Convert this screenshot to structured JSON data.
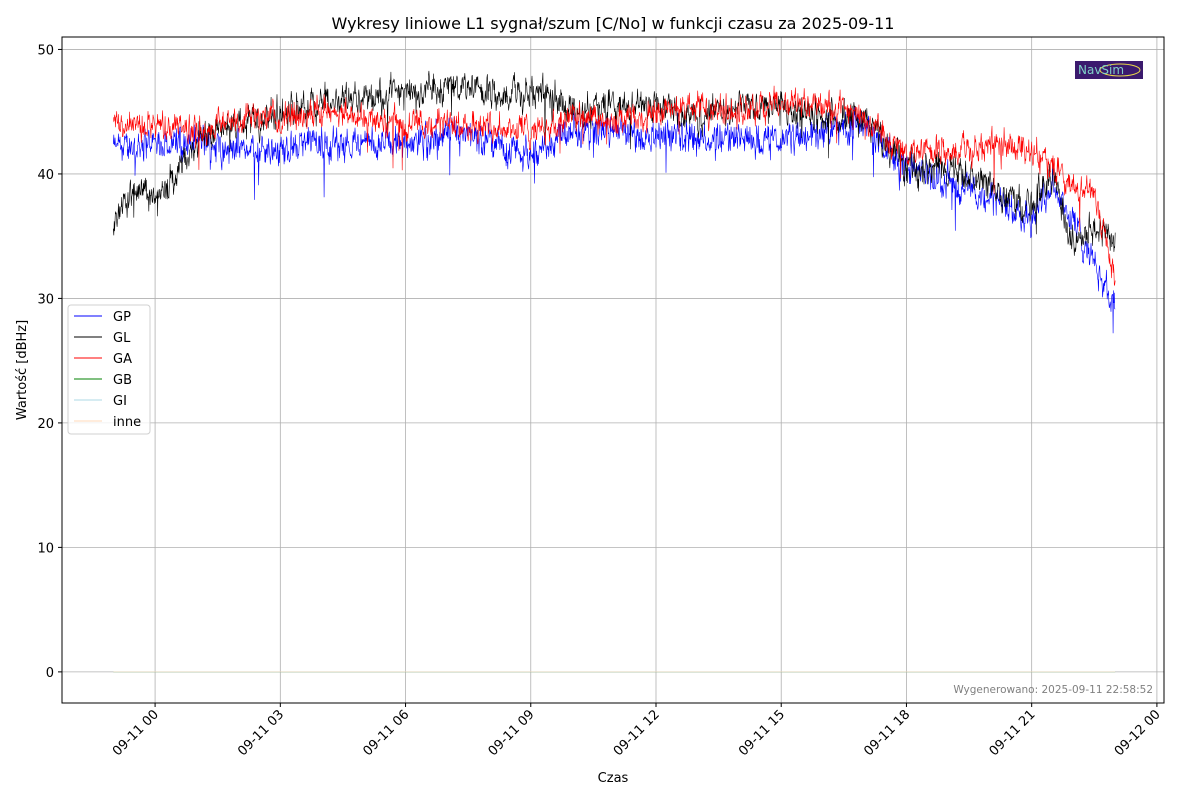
{
  "chart_data": {
    "type": "line",
    "title": "Wykresy liniowe L1 sygnał/szum [C/No] w funkcji czasu za 2025-09-11",
    "xlabel": "Czas",
    "ylabel": "Wartość [dBHz]",
    "x_units": "hours since 2025-09-11 00:00",
    "xlim": [
      -2.23,
      24.17
    ],
    "ylim": [
      -2.5,
      51
    ],
    "grid": true,
    "legend_position": "center-left",
    "x_ticks": [
      {
        "value": 0,
        "label": "09-11 00"
      },
      {
        "value": 3,
        "label": "09-11 03"
      },
      {
        "value": 6,
        "label": "09-11 06"
      },
      {
        "value": 9,
        "label": "09-11 09"
      },
      {
        "value": 12,
        "label": "09-11 12"
      },
      {
        "value": 15,
        "label": "09-11 15"
      },
      {
        "value": 18,
        "label": "09-11 18"
      },
      {
        "value": 21,
        "label": "09-11 21"
      },
      {
        "value": 24,
        "label": "09-12 00"
      }
    ],
    "y_ticks": [
      {
        "value": 0,
        "label": "0"
      },
      {
        "value": 10,
        "label": "10"
      },
      {
        "value": 20,
        "label": "20"
      },
      {
        "value": 30,
        "label": "30"
      },
      {
        "value": 40,
        "label": "40"
      },
      {
        "value": 50,
        "label": "50"
      }
    ],
    "series": [
      {
        "name": "GP",
        "color": "#0000ff",
        "noise": 1.0,
        "x": [
          -1,
          0,
          1,
          2,
          3,
          4,
          5,
          6,
          7,
          8,
          9,
          10,
          11,
          12,
          13,
          14,
          15,
          16,
          17,
          18,
          19,
          20,
          21,
          21.5,
          22,
          22.5,
          23
        ],
        "y": [
          42,
          42.5,
          42.5,
          42,
          42,
          42.5,
          42.5,
          42.5,
          43,
          42.5,
          41.5,
          43.5,
          43.5,
          43,
          43,
          43,
          42.5,
          43.5,
          44,
          40.5,
          39.5,
          38,
          36.5,
          39.5,
          36,
          33,
          29.5
        ]
      },
      {
        "name": "GL",
        "color": "#000000",
        "noise": 1.0,
        "x": [
          -1,
          -0.5,
          0,
          0.5,
          1,
          2,
          3,
          4,
          5,
          6,
          7,
          8,
          9,
          10,
          11,
          12,
          13,
          14,
          15,
          16,
          17,
          18,
          19,
          20,
          21,
          21.5,
          22,
          22.5,
          23
        ],
        "y": [
          36,
          38.5,
          38,
          39.5,
          43,
          44,
          45,
          45.5,
          46,
          46.5,
          47,
          46.5,
          46.5,
          45,
          45.5,
          45.5,
          44.5,
          45.5,
          45.5,
          44.5,
          44.5,
          40.5,
          40.5,
          39,
          37.5,
          40,
          34.5,
          36,
          34.5
        ]
      },
      {
        "name": "GA",
        "color": "#ff0000",
        "noise": 0.9,
        "x": [
          -1,
          0,
          1,
          2,
          3,
          4,
          5,
          6,
          7,
          8,
          9,
          10,
          11,
          12,
          13,
          14,
          15,
          16,
          17,
          18,
          19,
          20,
          21,
          22,
          22.5,
          23
        ],
        "y": [
          44,
          44,
          43.5,
          44.5,
          44.5,
          45,
          44.5,
          44,
          44,
          44,
          43.5,
          44.5,
          44,
          45,
          45.5,
          45,
          45.5,
          45.5,
          44.5,
          41.5,
          42,
          42,
          42,
          39,
          38.5,
          31.5
        ]
      },
      {
        "name": "GB",
        "color": "#008000",
        "noise": 0,
        "x": [
          -1,
          23
        ],
        "y": [
          0,
          0
        ]
      },
      {
        "name": "GI",
        "color": "#add8e6",
        "noise": 0,
        "x": [
          -1,
          23
        ],
        "y": [
          0,
          0
        ]
      },
      {
        "name": "inne",
        "color": "#ffdab9",
        "noise": 0,
        "x": [
          -1,
          23
        ],
        "y": [
          0,
          0
        ]
      }
    ],
    "annotation": "Wygenerowano: 2025-09-11 22:58:52",
    "logo_text": "NavSim"
  }
}
